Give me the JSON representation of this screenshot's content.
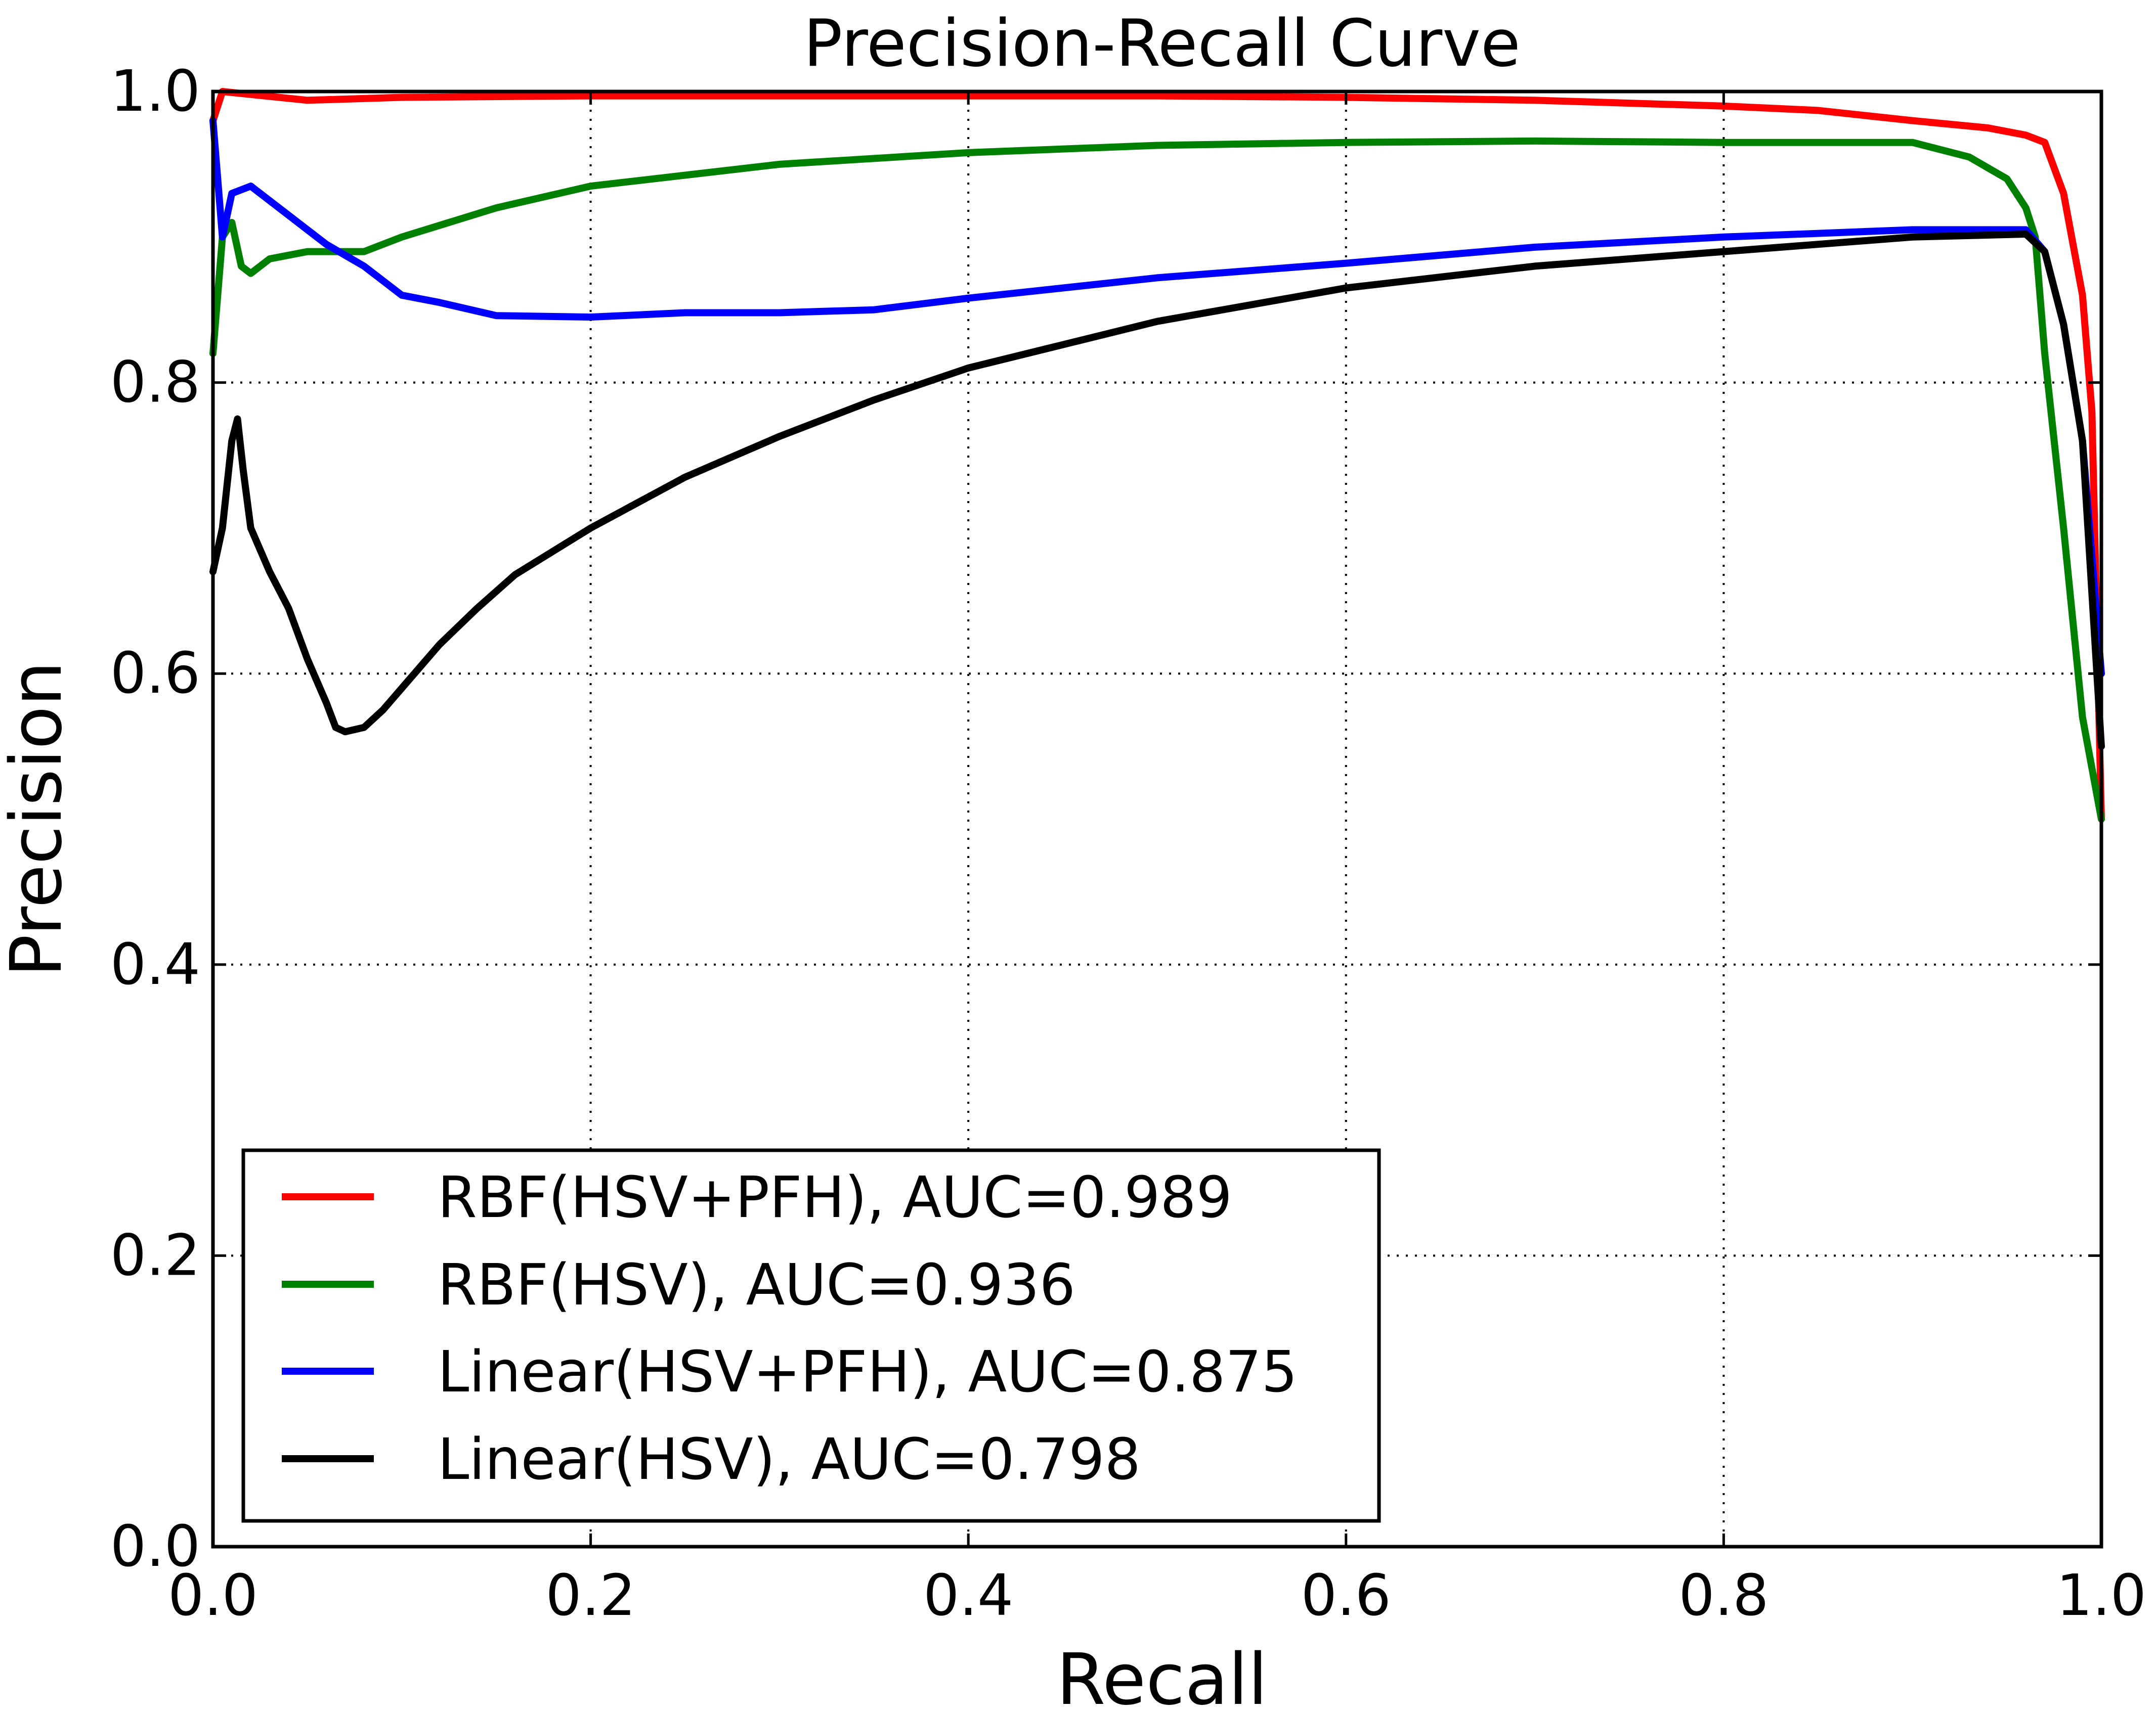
{
  "chart_data": {
    "type": "line",
    "title": "Precision-Recall Curve",
    "xlabel": "Recall",
    "ylabel": "Precision",
    "xlim": [
      0.0,
      1.0
    ],
    "ylim": [
      0.0,
      1.0
    ],
    "x_ticks": [
      "0.0",
      "0.2",
      "0.4",
      "0.6",
      "0.8",
      "1.0"
    ],
    "y_ticks": [
      "0.0",
      "0.2",
      "0.4",
      "0.6",
      "0.8",
      "1.0"
    ],
    "grid": true,
    "legend_position": "lower-left",
    "series": [
      {
        "name": "RBF(HSV+PFH), AUC=0.989",
        "color": "#ff0000",
        "points": [
          [
            0.0,
            0.98
          ],
          [
            0.005,
            1.0
          ],
          [
            0.02,
            0.998
          ],
          [
            0.05,
            0.994
          ],
          [
            0.1,
            0.996
          ],
          [
            0.2,
            0.997
          ],
          [
            0.3,
            0.997
          ],
          [
            0.4,
            0.997
          ],
          [
            0.5,
            0.997
          ],
          [
            0.6,
            0.996
          ],
          [
            0.7,
            0.994
          ],
          [
            0.8,
            0.99
          ],
          [
            0.85,
            0.987
          ],
          [
            0.9,
            0.98
          ],
          [
            0.94,
            0.975
          ],
          [
            0.96,
            0.97
          ],
          [
            0.97,
            0.965
          ],
          [
            0.98,
            0.93
          ],
          [
            0.99,
            0.86
          ],
          [
            0.995,
            0.78
          ],
          [
            1.0,
            0.5
          ]
        ]
      },
      {
        "name": "RBF(HSV), AUC=0.936",
        "color": "#008000",
        "points": [
          [
            0.0,
            0.82
          ],
          [
            0.005,
            0.9
          ],
          [
            0.01,
            0.91
          ],
          [
            0.015,
            0.88
          ],
          [
            0.02,
            0.875
          ],
          [
            0.03,
            0.885
          ],
          [
            0.05,
            0.89
          ],
          [
            0.08,
            0.89
          ],
          [
            0.1,
            0.9
          ],
          [
            0.15,
            0.92
          ],
          [
            0.2,
            0.935
          ],
          [
            0.3,
            0.95
          ],
          [
            0.4,
            0.958
          ],
          [
            0.5,
            0.963
          ],
          [
            0.6,
            0.965
          ],
          [
            0.7,
            0.966
          ],
          [
            0.8,
            0.965
          ],
          [
            0.9,
            0.965
          ],
          [
            0.93,
            0.955
          ],
          [
            0.95,
            0.94
          ],
          [
            0.96,
            0.92
          ],
          [
            0.965,
            0.9
          ],
          [
            0.97,
            0.82
          ],
          [
            0.98,
            0.7
          ],
          [
            0.99,
            0.57
          ],
          [
            1.0,
            0.5
          ]
        ]
      },
      {
        "name": "Linear(HSV+PFH), AUC=0.875",
        "color": "#0000ff",
        "points": [
          [
            0.0,
            0.98
          ],
          [
            0.005,
            0.9
          ],
          [
            0.01,
            0.93
          ],
          [
            0.02,
            0.935
          ],
          [
            0.04,
            0.915
          ],
          [
            0.06,
            0.895
          ],
          [
            0.08,
            0.88
          ],
          [
            0.1,
            0.86
          ],
          [
            0.12,
            0.855
          ],
          [
            0.15,
            0.846
          ],
          [
            0.2,
            0.845
          ],
          [
            0.25,
            0.848
          ],
          [
            0.3,
            0.848
          ],
          [
            0.35,
            0.85
          ],
          [
            0.4,
            0.858
          ],
          [
            0.5,
            0.872
          ],
          [
            0.6,
            0.882
          ],
          [
            0.7,
            0.893
          ],
          [
            0.8,
            0.9
          ],
          [
            0.9,
            0.905
          ],
          [
            0.96,
            0.905
          ],
          [
            0.97,
            0.89
          ],
          [
            0.98,
            0.84
          ],
          [
            0.99,
            0.76
          ],
          [
            1.0,
            0.6
          ]
        ]
      },
      {
        "name": "Linear(HSV), AUC=0.798",
        "color": "#000000",
        "points": [
          [
            0.0,
            0.67
          ],
          [
            0.005,
            0.7
          ],
          [
            0.01,
            0.76
          ],
          [
            0.013,
            0.775
          ],
          [
            0.016,
            0.74
          ],
          [
            0.02,
            0.7
          ],
          [
            0.03,
            0.67
          ],
          [
            0.04,
            0.645
          ],
          [
            0.05,
            0.61
          ],
          [
            0.06,
            0.58
          ],
          [
            0.065,
            0.563
          ],
          [
            0.07,
            0.56
          ],
          [
            0.08,
            0.563
          ],
          [
            0.09,
            0.575
          ],
          [
            0.1,
            0.59
          ],
          [
            0.12,
            0.62
          ],
          [
            0.14,
            0.645
          ],
          [
            0.16,
            0.668
          ],
          [
            0.2,
            0.7
          ],
          [
            0.25,
            0.735
          ],
          [
            0.3,
            0.763
          ],
          [
            0.35,
            0.788
          ],
          [
            0.4,
            0.81
          ],
          [
            0.5,
            0.842
          ],
          [
            0.6,
            0.865
          ],
          [
            0.7,
            0.88
          ],
          [
            0.8,
            0.89
          ],
          [
            0.9,
            0.9
          ],
          [
            0.96,
            0.902
          ],
          [
            0.97,
            0.89
          ],
          [
            0.98,
            0.84
          ],
          [
            0.99,
            0.76
          ],
          [
            1.0,
            0.55
          ]
        ]
      }
    ]
  }
}
